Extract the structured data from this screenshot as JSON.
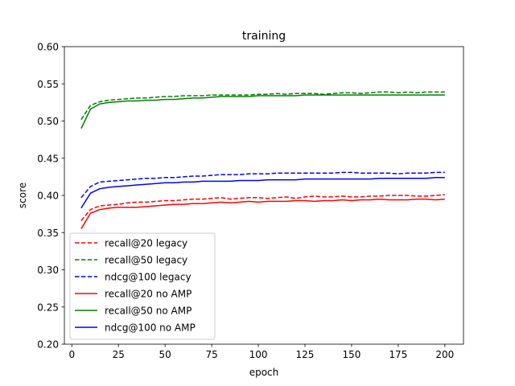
{
  "chart_data": {
    "type": "line",
    "title": "training",
    "xlabel": "epoch",
    "ylabel": "score",
    "xlim": [
      -4,
      210
    ],
    "ylim": [
      0.2,
      0.6
    ],
    "xticks": [
      0,
      25,
      50,
      75,
      100,
      125,
      150,
      175,
      200
    ],
    "yticks": [
      "0.20",
      "0.25",
      "0.30",
      "0.35",
      "0.40",
      "0.45",
      "0.50",
      "0.55",
      "0.60"
    ],
    "grid": false,
    "legend_position": "lower-left",
    "x": [
      5,
      10,
      15,
      20,
      25,
      30,
      35,
      40,
      45,
      50,
      55,
      60,
      65,
      70,
      75,
      80,
      85,
      90,
      95,
      100,
      105,
      110,
      115,
      120,
      125,
      130,
      135,
      140,
      145,
      150,
      155,
      160,
      165,
      170,
      175,
      180,
      185,
      190,
      195,
      200
    ],
    "series": [
      {
        "name": "recall@20 legacy",
        "color": "#ff0000",
        "dash": "dashed",
        "values": [
          0.366,
          0.381,
          0.386,
          0.387,
          0.388,
          0.39,
          0.391,
          0.391,
          0.392,
          0.393,
          0.393,
          0.394,
          0.395,
          0.395,
          0.396,
          0.397,
          0.395,
          0.396,
          0.397,
          0.397,
          0.396,
          0.397,
          0.398,
          0.396,
          0.398,
          0.399,
          0.398,
          0.398,
          0.399,
          0.398,
          0.398,
          0.399,
          0.399,
          0.4,
          0.4,
          0.4,
          0.399,
          0.399,
          0.4,
          0.401
        ]
      },
      {
        "name": "recall@50 legacy",
        "color": "#008000",
        "dash": "dashed",
        "values": [
          0.502,
          0.521,
          0.526,
          0.528,
          0.529,
          0.53,
          0.531,
          0.531,
          0.532,
          0.533,
          0.533,
          0.534,
          0.534,
          0.534,
          0.535,
          0.535,
          0.535,
          0.535,
          0.535,
          0.536,
          0.536,
          0.537,
          0.536,
          0.537,
          0.537,
          0.537,
          0.536,
          0.537,
          0.538,
          0.538,
          0.537,
          0.538,
          0.539,
          0.539,
          0.538,
          0.539,
          0.538,
          0.539,
          0.539,
          0.539
        ]
      },
      {
        "name": "ndcg@100 legacy",
        "color": "#0000ff",
        "dash": "dashed",
        "values": [
          0.397,
          0.412,
          0.418,
          0.419,
          0.42,
          0.421,
          0.422,
          0.423,
          0.423,
          0.424,
          0.424,
          0.425,
          0.426,
          0.426,
          0.427,
          0.428,
          0.428,
          0.428,
          0.429,
          0.429,
          0.429,
          0.43,
          0.43,
          0.43,
          0.43,
          0.43,
          0.43,
          0.43,
          0.431,
          0.431,
          0.43,
          0.43,
          0.43,
          0.43,
          0.429,
          0.43,
          0.43,
          0.43,
          0.431,
          0.431
        ]
      },
      {
        "name": "recall@20 no AMP",
        "color": "#ff0000",
        "dash": "solid",
        "values": [
          0.355,
          0.376,
          0.381,
          0.383,
          0.384,
          0.384,
          0.384,
          0.385,
          0.386,
          0.387,
          0.388,
          0.388,
          0.389,
          0.389,
          0.39,
          0.391,
          0.39,
          0.391,
          0.392,
          0.391,
          0.392,
          0.392,
          0.392,
          0.393,
          0.393,
          0.392,
          0.393,
          0.393,
          0.394,
          0.393,
          0.394,
          0.394,
          0.395,
          0.394,
          0.394,
          0.394,
          0.395,
          0.395,
          0.394,
          0.395
        ]
      },
      {
        "name": "recall@50 no AMP",
        "color": "#008000",
        "dash": "solid",
        "values": [
          0.49,
          0.516,
          0.523,
          0.525,
          0.526,
          0.527,
          0.527,
          0.528,
          0.528,
          0.529,
          0.529,
          0.53,
          0.531,
          0.531,
          0.532,
          0.533,
          0.533,
          0.533,
          0.533,
          0.534,
          0.534,
          0.534,
          0.534,
          0.534,
          0.535,
          0.535,
          0.535,
          0.535,
          0.535,
          0.535,
          0.535,
          0.535,
          0.535,
          0.535,
          0.535,
          0.535,
          0.535,
          0.535,
          0.535,
          0.535
        ]
      },
      {
        "name": "ndcg@100 no AMP",
        "color": "#0000ff",
        "dash": "solid",
        "values": [
          0.383,
          0.403,
          0.409,
          0.411,
          0.412,
          0.413,
          0.414,
          0.415,
          0.416,
          0.417,
          0.417,
          0.418,
          0.418,
          0.419,
          0.419,
          0.419,
          0.419,
          0.42,
          0.42,
          0.42,
          0.421,
          0.421,
          0.421,
          0.421,
          0.422,
          0.422,
          0.422,
          0.422,
          0.422,
          0.422,
          0.422,
          0.422,
          0.423,
          0.423,
          0.423,
          0.423,
          0.423,
          0.423,
          0.424,
          0.424
        ]
      }
    ]
  }
}
